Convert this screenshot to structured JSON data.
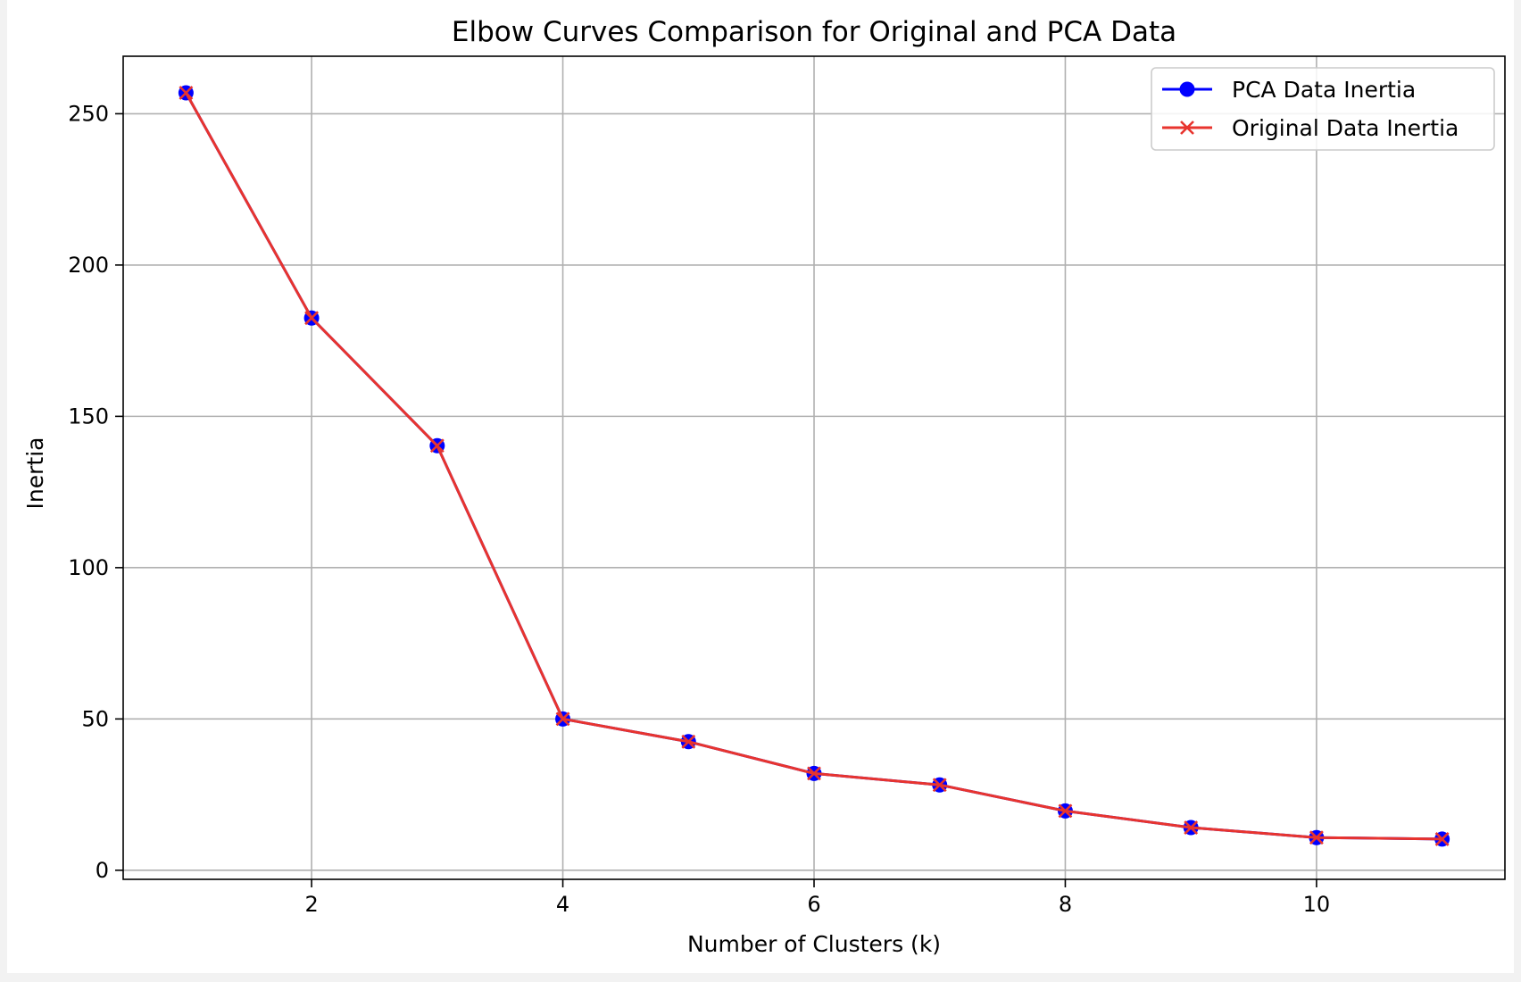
{
  "chart_data": {
    "type": "line",
    "title": "Elbow Curves Comparison for Original and PCA Data",
    "xlabel": "Number of Clusters (k)",
    "ylabel": "Inertia",
    "xlim": [
      0.5,
      11.5
    ],
    "ylim": [
      -3,
      269
    ],
    "xticks": [
      2,
      4,
      6,
      8,
      10
    ],
    "yticks": [
      0,
      50,
      100,
      150,
      200,
      250
    ],
    "grid": true,
    "legend_position": "upper right",
    "x": [
      1,
      2,
      3,
      4,
      5,
      6,
      7,
      8,
      9,
      10,
      11
    ],
    "series": [
      {
        "name": "PCA Data Inertia",
        "color": "#0000ff",
        "marker": "circle",
        "values": [
          256.9,
          182.5,
          140.3,
          50.0,
          42.5,
          32.0,
          28.2,
          19.6,
          14.1,
          10.8,
          10.3
        ]
      },
      {
        "name": "Original Data Inertia",
        "color": "#e8342e",
        "marker": "x",
        "values": [
          256.9,
          182.5,
          140.3,
          50.0,
          42.5,
          32.0,
          28.2,
          19.6,
          14.1,
          10.8,
          10.3
        ]
      }
    ]
  }
}
